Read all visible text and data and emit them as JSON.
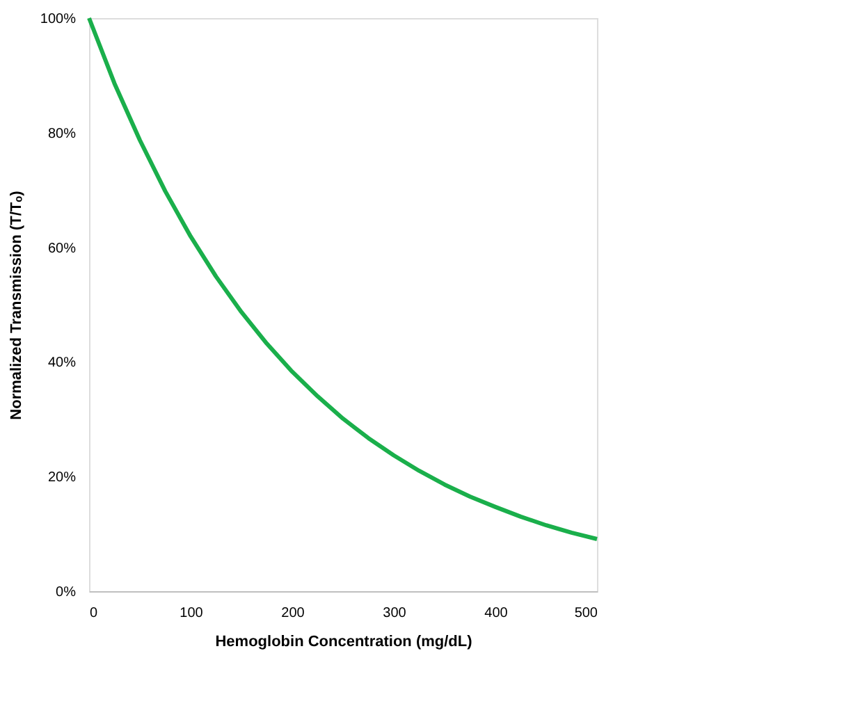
{
  "chart_data": {
    "type": "line",
    "xlabel": "Hemoglobin Concentration (mg/dL)",
    "ylabel": "Normalized Transmission (T/Tₒ)",
    "x": [
      0,
      25,
      50,
      75,
      100,
      125,
      150,
      175,
      200,
      225,
      250,
      275,
      300,
      325,
      350,
      375,
      400,
      425,
      450,
      475,
      500
    ],
    "series": [
      {
        "color": "#1aaf4b",
        "values": [
          100,
          88.6,
          78.7,
          69.8,
          61.9,
          54.9,
          48.7,
          43.2,
          38.3,
          34.0,
          30.1,
          26.7,
          23.7,
          21.0,
          18.6,
          16.5,
          14.7,
          13.0,
          11.5,
          10.2,
          9.1
        ]
      }
    ],
    "xlim": [
      0,
      500
    ],
    "xticks": [
      0,
      100,
      200,
      300,
      400,
      500
    ],
    "ylim": [
      0,
      100
    ],
    "yticks": [
      {
        "value": 0,
        "label": "0%"
      },
      {
        "value": 20,
        "label": "20%"
      },
      {
        "value": 40,
        "label": "40%"
      },
      {
        "value": 60,
        "label": "60%"
      },
      {
        "value": 80,
        "label": "80%"
      },
      {
        "value": 100,
        "label": "100%"
      }
    ],
    "grid": false
  }
}
